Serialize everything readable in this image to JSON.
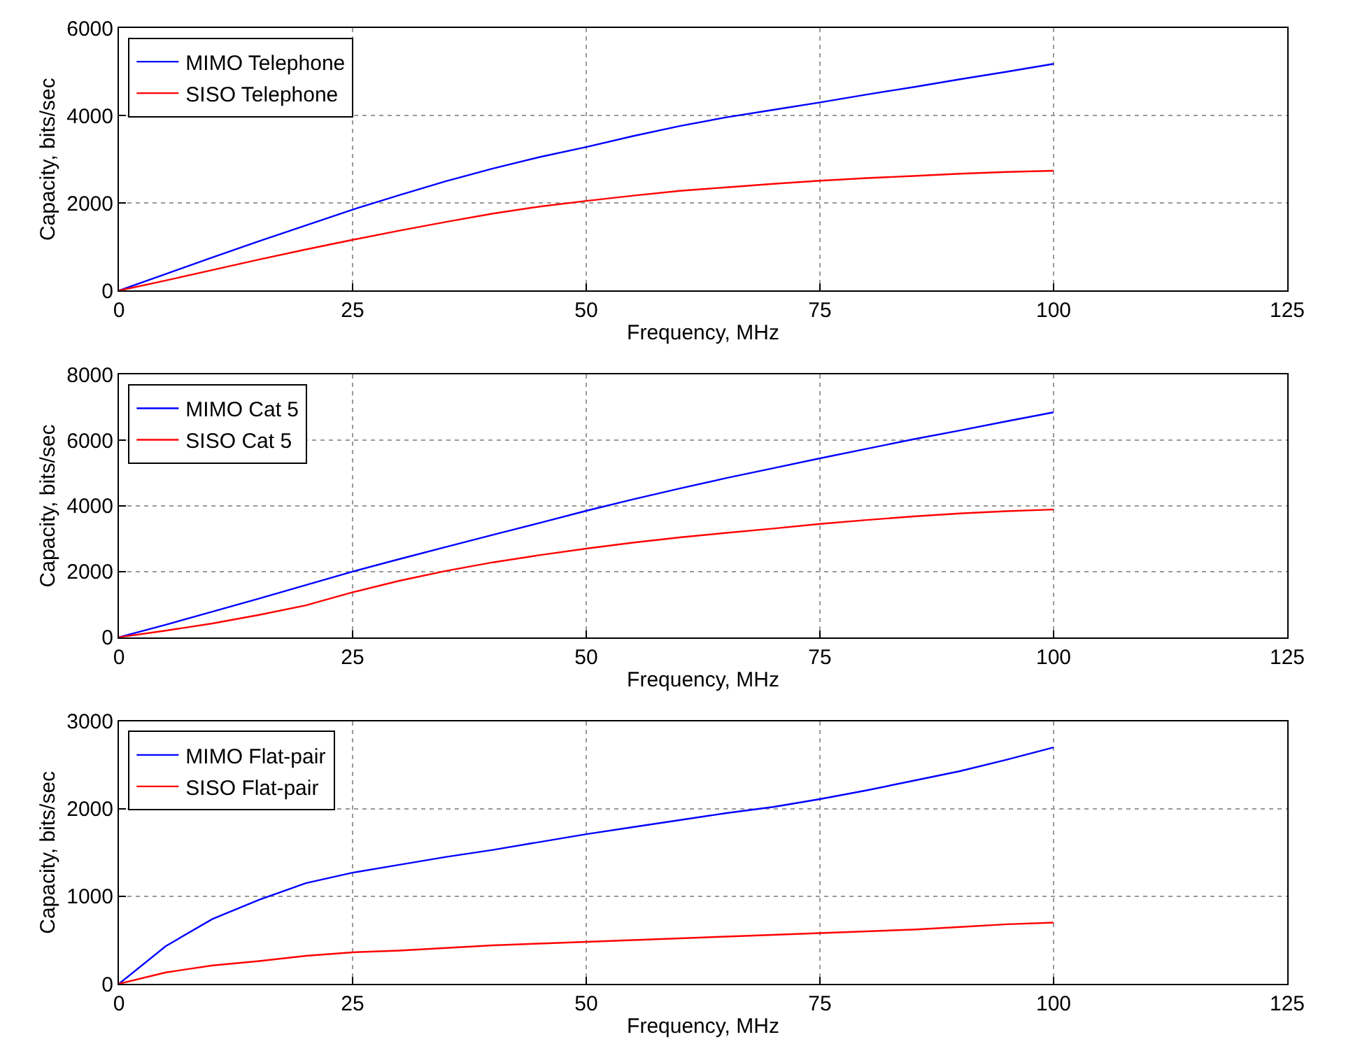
{
  "chart_data": [
    {
      "type": "line",
      "xlabel": "Frequency, MHz",
      "ylabel": "Capacity, bits/sec",
      "x": [
        0,
        5,
        10,
        15,
        20,
        25,
        30,
        35,
        40,
        45,
        50,
        55,
        60,
        65,
        70,
        75,
        80,
        85,
        90,
        95,
        100
      ],
      "xlim": [
        0,
        125
      ],
      "xticks": [
        0,
        25,
        50,
        75,
        100,
        125
      ],
      "ylim": [
        0,
        6000
      ],
      "yticks": [
        0,
        2000,
        4000,
        6000
      ],
      "grid": true,
      "legend": "top left",
      "line_style": "solid",
      "series": [
        {
          "name": "MIMO Telephone",
          "color": "#0000ff",
          "values": [
            0,
            380,
            760,
            1130,
            1490,
            1850,
            2180,
            2500,
            2790,
            3050,
            3280,
            3530,
            3760,
            3960,
            4130,
            4300,
            4480,
            4650,
            4830,
            5000,
            5180
          ]
        },
        {
          "name": "SISO Telephone",
          "color": "#ff0000",
          "values": [
            0,
            230,
            470,
            710,
            940,
            1160,
            1370,
            1570,
            1760,
            1920,
            2050,
            2170,
            2280,
            2360,
            2440,
            2510,
            2570,
            2620,
            2670,
            2710,
            2740
          ]
        }
      ]
    },
    {
      "type": "line",
      "xlabel": "Frequency, MHz",
      "ylabel": "Capacity, bits/sec",
      "x": [
        0,
        5,
        10,
        15,
        20,
        25,
        30,
        35,
        40,
        45,
        50,
        55,
        60,
        65,
        70,
        75,
        80,
        85,
        90,
        95,
        100
      ],
      "xlim": [
        0,
        125
      ],
      "xticks": [
        0,
        25,
        50,
        75,
        100,
        125
      ],
      "ylim": [
        0,
        8000
      ],
      "yticks": [
        0,
        2000,
        4000,
        6000,
        8000
      ],
      "grid": true,
      "legend": "top left",
      "line_style": "solid",
      "series": [
        {
          "name": "MIMO Cat 5",
          "color": "#0000ff",
          "values": [
            0,
            380,
            780,
            1180,
            1590,
            2000,
            2380,
            2750,
            3120,
            3480,
            3850,
            4200,
            4530,
            4850,
            5150,
            5450,
            5740,
            6030,
            6300,
            6580,
            6850
          ]
        },
        {
          "name": "SISO Cat 5",
          "color": "#ff0000",
          "values": [
            0,
            200,
            420,
            680,
            970,
            1370,
            1720,
            2020,
            2280,
            2500,
            2700,
            2880,
            3040,
            3180,
            3310,
            3450,
            3570,
            3680,
            3770,
            3840,
            3890
          ]
        }
      ]
    },
    {
      "type": "line",
      "xlabel": "Frequency, MHz",
      "ylabel": "Capacity, bits/sec",
      "x": [
        0,
        5,
        10,
        15,
        20,
        25,
        30,
        35,
        40,
        45,
        50,
        55,
        60,
        65,
        70,
        75,
        80,
        85,
        90,
        95,
        100
      ],
      "xlim": [
        0,
        125
      ],
      "xticks": [
        0,
        25,
        50,
        75,
        100,
        125
      ],
      "ylim": [
        0,
        3000
      ],
      "yticks": [
        0,
        1000,
        2000,
        3000
      ],
      "grid": true,
      "legend": "top left",
      "line_style": "solid",
      "series": [
        {
          "name": "MIMO Flat-pair",
          "color": "#0000ff",
          "values": [
            0,
            430,
            740,
            960,
            1150,
            1270,
            1360,
            1450,
            1530,
            1620,
            1710,
            1790,
            1870,
            1950,
            2020,
            2110,
            2210,
            2320,
            2430,
            2560,
            2700
          ]
        },
        {
          "name": "SISO Flat-pair",
          "color": "#ff0000",
          "values": [
            0,
            130,
            210,
            260,
            320,
            360,
            380,
            410,
            440,
            460,
            480,
            500,
            520,
            540,
            560,
            580,
            600,
            620,
            650,
            680,
            700
          ]
        }
      ]
    }
  ]
}
